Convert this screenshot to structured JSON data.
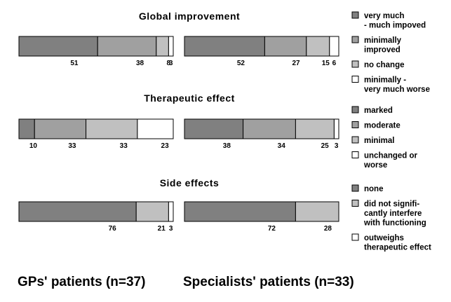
{
  "chart_data": [
    {
      "type": "bar",
      "stacked": true,
      "orientation": "horizontal",
      "unit": "percent",
      "title": "Global improvement",
      "categories": [
        "GPs' patients (n=37)",
        "Specialists' patients (n=33)"
      ],
      "series": [
        {
          "name": "very much\n- much impoved",
          "values": [
            51,
            52
          ],
          "color": "#808080"
        },
        {
          "name": "minimally\nimproved",
          "values": [
            38,
            27
          ],
          "color": "#a0a0a0"
        },
        {
          "name": "no change",
          "values": [
            8,
            15
          ],
          "color": "#c0c0c0"
        },
        {
          "name": "minimally -\nvery much worse",
          "values": [
            3,
            6
          ],
          "color": "#ffffff"
        }
      ]
    },
    {
      "type": "bar",
      "stacked": true,
      "orientation": "horizontal",
      "unit": "percent",
      "title": "Therapeutic effect",
      "categories": [
        "GPs' patients (n=37)",
        "Specialists' patients (n=33)"
      ],
      "series": [
        {
          "name": "marked",
          "values": [
            10,
            38
          ],
          "color": "#808080"
        },
        {
          "name": "moderate",
          "values": [
            33,
            34
          ],
          "color": "#a0a0a0"
        },
        {
          "name": "minimal",
          "values": [
            33,
            25
          ],
          "color": "#c0c0c0"
        },
        {
          "name": "unchanged or\nworse",
          "values": [
            23,
            3
          ],
          "color": "#ffffff"
        }
      ]
    },
    {
      "type": "bar",
      "stacked": true,
      "orientation": "horizontal",
      "unit": "percent",
      "title": "Side effects",
      "categories": [
        "GPs' patients (n=37)",
        "Specialists' patients (n=33)"
      ],
      "series": [
        {
          "name": "none",
          "values": [
            76,
            72
          ],
          "color": "#808080"
        },
        {
          "name": "did not signifi-\ncantly  interfere\nwith  functioning",
          "values": [
            21,
            28
          ],
          "color": "#c0c0c0"
        },
        {
          "name": "outweighs\ntherapeutic effect",
          "values": [
            3,
            null
          ],
          "color": "#ffffff"
        }
      ]
    }
  ],
  "group_labels": [
    "GPs' patients (n=37)",
    "Specialists' patients (n=33)"
  ]
}
